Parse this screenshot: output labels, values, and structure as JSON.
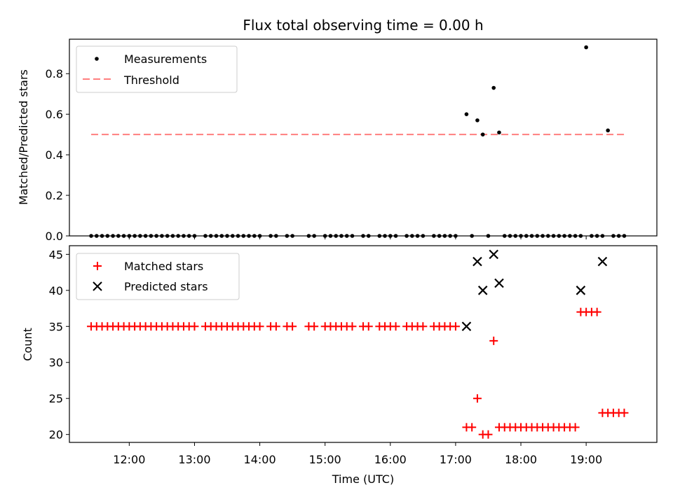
{
  "chart_data": [
    {
      "type": "scatter",
      "title": "Flux total observing time = 0.00 h",
      "xlabel": "",
      "ylabel": "Matched/Predicted stars",
      "ylim": [
        0,
        0.97
      ],
      "yticks": [
        "0.0",
        "0.2",
        "0.4",
        "0.6",
        "0.8"
      ],
      "legend": "upper-left",
      "legend_entries": [
        "Measurements",
        "Threshold"
      ],
      "threshold": {
        "name": "Threshold",
        "value": 0.5,
        "x_start": "11:25",
        "x_end": "19:35",
        "color": "#ff7f7f"
      },
      "series": [
        {
          "name": "Measurements",
          "color": "#000000",
          "x": [
            "11:25",
            "11:30",
            "11:35",
            "11:40",
            "11:45",
            "11:50",
            "11:55",
            "12:00",
            "12:05",
            "12:10",
            "12:15",
            "12:20",
            "12:25",
            "12:30",
            "12:35",
            "12:40",
            "12:45",
            "12:50",
            "12:55",
            "13:00",
            "13:10",
            "13:15",
            "13:20",
            "13:25",
            "13:30",
            "13:35",
            "13:40",
            "13:45",
            "13:50",
            "13:55",
            "14:00",
            "14:10",
            "14:15",
            "14:25",
            "14:30",
            "14:45",
            "14:50",
            "15:00",
            "15:05",
            "15:10",
            "15:15",
            "15:20",
            "15:25",
            "15:35",
            "15:40",
            "15:50",
            "15:55",
            "16:00",
            "16:05",
            "16:15",
            "16:20",
            "16:25",
            "16:30",
            "16:40",
            "16:45",
            "16:50",
            "16:55",
            "17:00",
            "17:10",
            "17:15",
            "17:20",
            "17:25",
            "17:30",
            "17:35",
            "17:40",
            "17:45",
            "17:50",
            "17:55",
            "18:00",
            "18:05",
            "18:10",
            "18:15",
            "18:20",
            "18:25",
            "18:30",
            "18:35",
            "18:40",
            "18:45",
            "18:50",
            "18:55",
            "19:00",
            "19:05",
            "19:10",
            "19:15",
            "19:20",
            "19:25",
            "19:30",
            "19:35"
          ],
          "y": [
            0,
            0,
            0,
            0,
            0,
            0,
            0,
            0,
            0,
            0,
            0,
            0,
            0,
            0,
            0,
            0,
            0,
            0,
            0,
            0,
            0,
            0,
            0,
            0,
            0,
            0,
            0,
            0,
            0,
            0,
            0,
            0,
            0,
            0,
            0,
            0,
            0,
            0,
            0,
            0,
            0,
            0,
            0,
            0,
            0,
            0,
            0,
            0,
            0,
            0,
            0,
            0,
            0,
            0,
            0,
            0,
            0,
            0,
            0.6,
            0,
            0.57,
            0.5,
            0,
            0.73,
            0.51,
            0,
            0,
            0,
            0,
            0,
            0,
            0,
            0,
            0,
            0,
            0,
            0,
            0,
            0,
            0,
            0.93,
            0,
            0,
            0,
            0.52,
            0,
            0,
            0
          ]
        }
      ]
    },
    {
      "type": "scatter",
      "xlabel": "Time (UTC)",
      "ylabel": "Count",
      "ylim": [
        18.9,
        46.2
      ],
      "yticks": [
        "20",
        "25",
        "30",
        "35",
        "40",
        "45"
      ],
      "xlim": [
        "11:05",
        "20:05"
      ],
      "xticks": [
        "12:00",
        "13:00",
        "14:00",
        "15:00",
        "16:00",
        "17:00",
        "18:00",
        "19:00"
      ],
      "legend": "upper-left",
      "legend_entries": [
        "Matched stars",
        "Predicted stars"
      ],
      "series": [
        {
          "name": "Matched stars",
          "color": "#ff0000",
          "x": [
            "11:25",
            "11:30",
            "11:35",
            "11:40",
            "11:45",
            "11:50",
            "11:55",
            "12:00",
            "12:05",
            "12:10",
            "12:15",
            "12:20",
            "12:25",
            "12:30",
            "12:35",
            "12:40",
            "12:45",
            "12:50",
            "12:55",
            "13:00",
            "13:10",
            "13:15",
            "13:20",
            "13:25",
            "13:30",
            "13:35",
            "13:40",
            "13:45",
            "13:50",
            "13:55",
            "14:00",
            "14:10",
            "14:15",
            "14:25",
            "14:30",
            "14:45",
            "14:50",
            "15:00",
            "15:05",
            "15:10",
            "15:15",
            "15:20",
            "15:25",
            "15:35",
            "15:40",
            "15:50",
            "15:55",
            "16:00",
            "16:05",
            "16:15",
            "16:20",
            "16:25",
            "16:30",
            "16:40",
            "16:45",
            "16:50",
            "16:55",
            "17:00",
            "17:10",
            "17:15",
            "17:20",
            "17:25",
            "17:30",
            "17:35",
            "17:40",
            "17:45",
            "17:50",
            "17:55",
            "18:00",
            "18:05",
            "18:10",
            "18:15",
            "18:20",
            "18:25",
            "18:30",
            "18:35",
            "18:40",
            "18:45",
            "18:50",
            "18:55",
            "19:00",
            "19:05",
            "19:10",
            "19:15",
            "19:20",
            "19:25",
            "19:30",
            "19:35"
          ],
          "y": [
            35,
            35,
            35,
            35,
            35,
            35,
            35,
            35,
            35,
            35,
            35,
            35,
            35,
            35,
            35,
            35,
            35,
            35,
            35,
            35,
            35,
            35,
            35,
            35,
            35,
            35,
            35,
            35,
            35,
            35,
            35,
            35,
            35,
            35,
            35,
            35,
            35,
            35,
            35,
            35,
            35,
            35,
            35,
            35,
            35,
            35,
            35,
            35,
            35,
            35,
            35,
            35,
            35,
            35,
            35,
            35,
            35,
            35,
            21,
            21,
            25,
            20,
            20,
            33,
            21,
            21,
            21,
            21,
            21,
            21,
            21,
            21,
            21,
            21,
            21,
            21,
            21,
            21,
            21,
            37,
            37,
            37,
            37,
            23,
            23,
            23,
            23,
            23
          ]
        },
        {
          "name": "Predicted stars",
          "color": "#000000",
          "x": [
            "17:10",
            "17:20",
            "17:25",
            "17:35",
            "17:40",
            "18:55",
            "19:15"
          ],
          "y": [
            35,
            44,
            40,
            45,
            41,
            40,
            44
          ]
        }
      ]
    }
  ]
}
